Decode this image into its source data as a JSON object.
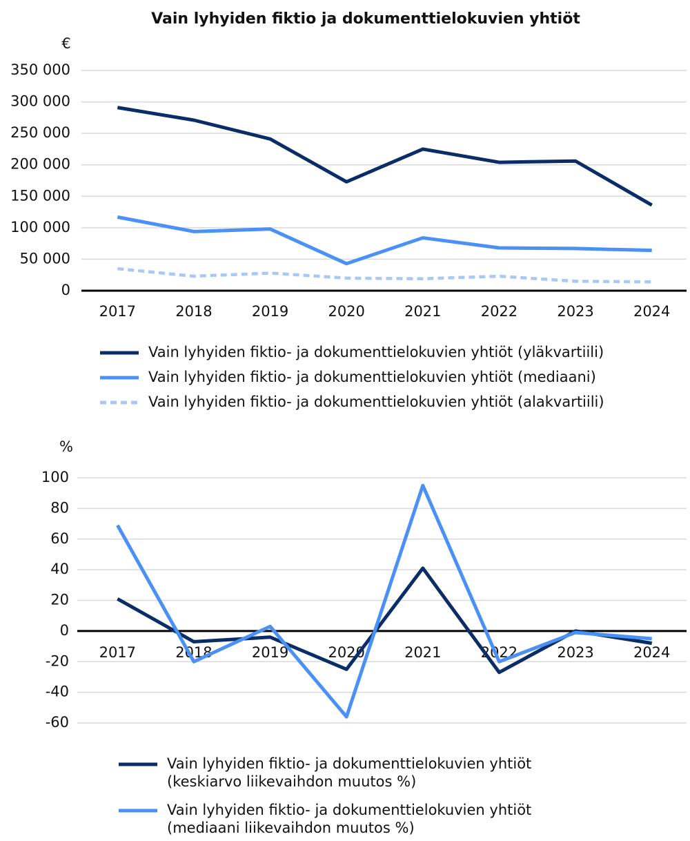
{
  "chart_data": [
    {
      "type": "line",
      "title": "Vain lyhyiden fiktio ja dokumenttielokuvien yhtiöt",
      "y_label": "€",
      "categories": [
        "2017",
        "2018",
        "2019",
        "2020",
        "2021",
        "2022",
        "2023",
        "2024"
      ],
      "ylim": [
        0,
        350000
      ],
      "yticks": [
        0,
        {
          "value": 50000,
          "label": "50 000"
        },
        {
          "value": 100000,
          "label": "100 000"
        },
        {
          "value": 150000,
          "label": "150 000"
        },
        {
          "value": 200000,
          "label": "200 000"
        },
        {
          "value": 250000,
          "label": "250 000"
        },
        {
          "value": 300000,
          "label": "300 000"
        },
        {
          "value": 350000,
          "label": "350 000"
        }
      ],
      "grid": true,
      "series": [
        {
          "name": "Vain lyhyiden fiktio- ja dokumenttielokuvien yhtiöt (yläkvartiili)",
          "color": "#0b2d67",
          "values": [
            291000,
            271000,
            241000,
            173000,
            225000,
            204000,
            206000,
            136000
          ]
        },
        {
          "name": "Vain lyhyiden fiktio- ja dokumenttielokuvien yhtiöt (mediaani)",
          "color": "#4a90f5",
          "values": [
            117000,
            94000,
            98000,
            43000,
            84000,
            68000,
            67000,
            64000
          ]
        },
        {
          "name": "Vain lyhyiden fiktio- ja dokumenttielokuvien yhtiöt (alakvartiili)",
          "color": "#a9c8f6",
          "dashed": true,
          "values": [
            35000,
            23000,
            28000,
            20000,
            19000,
            23000,
            15000,
            14000
          ]
        }
      ]
    },
    {
      "type": "line",
      "y_label": "%",
      "categories": [
        "2017",
        "2018",
        "2019",
        "2020",
        "2021",
        "2022",
        "2023",
        "2024"
      ],
      "ylim": [
        -60,
        100
      ],
      "yticks": [
        -60,
        -40,
        -20,
        0,
        20,
        40,
        60,
        80,
        100
      ],
      "grid": true,
      "series": [
        {
          "name": "Vain lyhyiden fiktio- ja dokumenttielokuvien yhtiöt\n(keskiarvo liikevaihdon muutos %)",
          "color": "#0b2d67",
          "values": [
            21,
            -7,
            -4,
            -25,
            41,
            -27,
            0,
            -8
          ]
        },
        {
          "name": "Vain lyhyiden fiktio- ja dokumenttielokuvien yhtiöt\n(mediaani liikevaihdon muutos %)",
          "color": "#4a90f5",
          "values": [
            69,
            -20,
            3,
            -56,
            95,
            -20,
            -1,
            -5
          ]
        }
      ]
    }
  ]
}
